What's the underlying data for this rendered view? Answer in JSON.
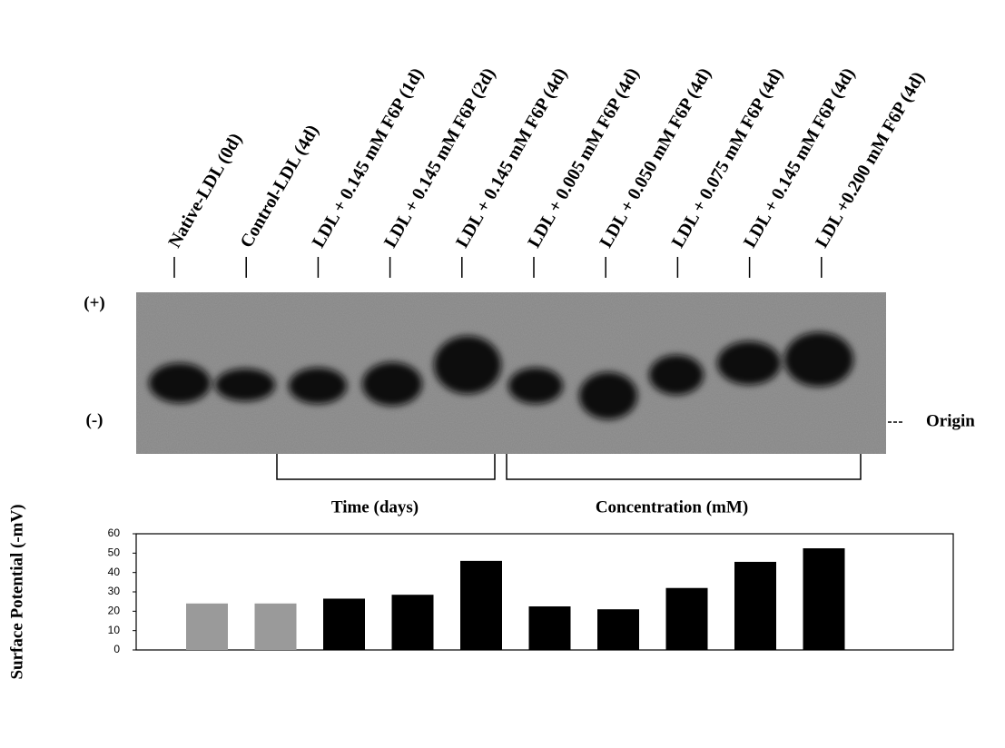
{
  "chart_data": {
    "type": "bar",
    "ylabel": "Surface Potential (-mV)",
    "categories": [
      "Native-LDL (0d)",
      "Control-LDL (4d)",
      "LDL + 0.145 mM F6P (1d)",
      "LDL + 0.145 mM F6P (2d)",
      "LDL + 0.145 mM F6P (4d)",
      "LDL + 0.005 mM F6P (4d)",
      "LDL + 0.050 mM F6P (4d)",
      "LDL + 0.075 mM F6P (4d)",
      "LDL + 0.145 mM F6P (4d)",
      "LDL +0.200 mM F6P (4d)"
    ],
    "values": [
      24,
      24,
      26.5,
      28.5,
      46,
      22.5,
      21,
      32,
      45.5,
      52.5
    ],
    "colors": [
      "#9a9a9a",
      "#9a9a9a",
      "#000000",
      "#000000",
      "#000000",
      "#000000",
      "#000000",
      "#000000",
      "#000000",
      "#000000"
    ],
    "ylim": [
      0,
      60
    ],
    "yticks": [
      0,
      10,
      20,
      30,
      40,
      50,
      60
    ],
    "annotations": [
      "(+)",
      "(-)",
      "Origin",
      "Time (days)",
      "Concentration (mM)"
    ]
  }
}
